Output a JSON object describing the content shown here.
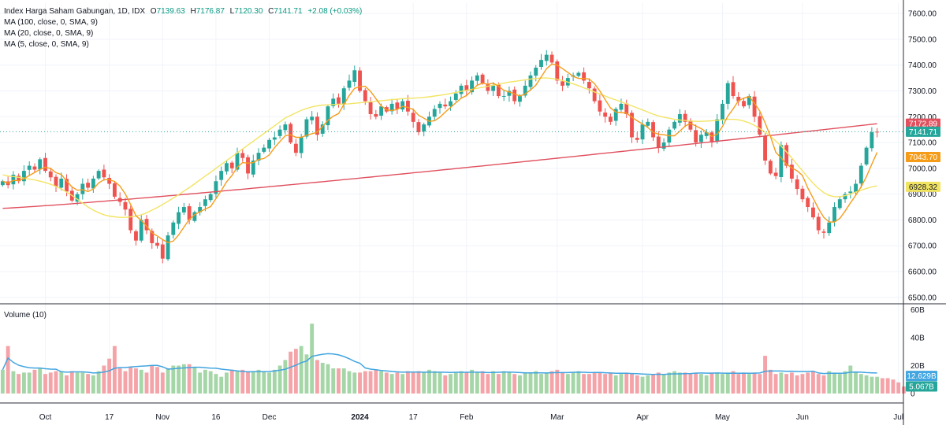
{
  "legend": {
    "title": "Index Harga Saham Gabungan, 1D, IDX",
    "open_label": "O",
    "open": "7139.63",
    "high_label": "H",
    "high": "7176.87",
    "low_label": "L",
    "low": "7120.30",
    "close_label": "C",
    "close": "7141.71",
    "change": "+2.08 (+0.03%)",
    "ma100": "MA (100, close, 0, SMA, 9)",
    "ma20": "MA (20, close, 0, SMA, 9)",
    "ma5": "MA (5, close, 0, SMA, 9)",
    "volume_label": "Volume (10)"
  },
  "colors": {
    "up": "#26a69a",
    "down": "#ef5350",
    "up_vol": "#a5d6a7",
    "down_vol": "#f4a3a8",
    "ma100": "#e0505e",
    "ma20": "#f2e463",
    "ma5": "#f59c1a",
    "vol_ma": "#42a5e0",
    "grid": "#f0f3fa",
    "border": "#2a2e39"
  },
  "chart_data": {
    "type": "candlestick",
    "price_axis": {
      "ticks": [
        "7600.00",
        "7500.00",
        "7400.00",
        "7300.00",
        "7200.00",
        "7100.00",
        "7000.00",
        "6900.00",
        "6800.00",
        "6700.00",
        "6600.00",
        "6500.00"
      ],
      "range": [
        6475,
        7640
      ]
    },
    "volume_axis": {
      "ticks": [
        "60B",
        "40B",
        "20B",
        "0"
      ],
      "range": [
        0,
        62
      ]
    },
    "x_labels": [
      {
        "label": "Oct",
        "index": 8
      },
      {
        "label": "17",
        "index": 20
      },
      {
        "label": "Nov",
        "index": 30
      },
      {
        "label": "16",
        "index": 40
      },
      {
        "label": "Dec",
        "index": 50
      },
      {
        "label": "2024",
        "index": 67,
        "bold": true
      },
      {
        "label": "17",
        "index": 77
      },
      {
        "label": "Feb",
        "index": 87
      },
      {
        "label": "Mar",
        "index": 104
      },
      {
        "label": "Apr",
        "index": 120
      },
      {
        "label": "May",
        "index": 135
      },
      {
        "label": "Jun",
        "index": 150
      },
      {
        "label": "Jul",
        "index": 168
      }
    ],
    "price_tags": [
      {
        "value": 7172.89,
        "text": "7172.89",
        "color": "#e0505e"
      },
      {
        "value": 7141.71,
        "text": "7141.71",
        "color": "#26a69a"
      },
      {
        "value": 7043.7,
        "text": "7043.70",
        "color": "#f59c1a"
      },
      {
        "value": 6928.32,
        "text": "6928.32",
        "color": "#f2e463",
        "dark_text": true
      }
    ],
    "volume_tags": [
      {
        "value": 12.629,
        "text": "12.629B",
        "color": "#42a5e0"
      },
      {
        "value": 5.067,
        "text": "5.067B",
        "color": "#26a69a"
      }
    ],
    "closes": [
      6950,
      6935,
      6975,
      6950,
      6990,
      7010,
      6995,
      7035,
      6990,
      6965,
      6930,
      6960,
      6910,
      6875,
      6900,
      6940,
      6925,
      6960,
      6990,
      6965,
      6940,
      6890,
      6870,
      6840,
      6760,
      6720,
      6800,
      6760,
      6710,
      6700,
      6650,
      6740,
      6790,
      6830,
      6850,
      6800,
      6830,
      6850,
      6880,
      6900,
      6950,
      6990,
      7020,
      7000,
      7060,
      7040,
      6980,
      7030,
      7060,
      7080,
      7110,
      7120,
      7150,
      7170,
      7100,
      7060,
      7120,
      7190,
      7200,
      7130,
      7170,
      7240,
      7270,
      7250,
      7310,
      7340,
      7380,
      7300,
      7260,
      7210,
      7200,
      7240,
      7220,
      7250,
      7230,
      7260,
      7220,
      7180,
      7140,
      7170,
      7200,
      7230,
      7250,
      7240,
      7260,
      7290,
      7320,
      7300,
      7340,
      7360,
      7330,
      7300,
      7320,
      7280,
      7280,
      7300,
      7260,
      7280,
      7320,
      7360,
      7390,
      7420,
      7440,
      7410,
      7340,
      7320,
      7350,
      7360,
      7370,
      7340,
      7310,
      7260,
      7220,
      7200,
      7180,
      7230,
      7250,
      7210,
      7120,
      7110,
      7170,
      7180,
      7120,
      7080,
      7100,
      7150,
      7180,
      7210,
      7180,
      7150,
      7100,
      7130,
      7140,
      7100,
      7190,
      7250,
      7330,
      7280,
      7260,
      7240,
      7280,
      7200,
      7130,
      7030,
      6980,
      6970,
      7090,
      7010,
      6960,
      6920,
      6880,
      6850,
      6810,
      6760,
      6750,
      6790,
      6850,
      6880,
      6900,
      6910,
      6940,
      7010,
      7080,
      7140,
      7140
    ],
    "volumes": [
      17,
      34,
      16,
      14,
      15,
      15,
      17,
      18,
      14,
      15,
      16,
      16,
      13,
      16,
      15,
      15,
      14,
      13,
      16,
      20,
      25,
      34,
      18,
      16,
      19,
      18,
      17,
      15,
      20,
      19,
      15,
      18,
      20,
      20,
      21,
      21,
      19,
      15,
      17,
      16,
      14,
      12,
      15,
      17,
      16,
      17,
      16,
      16,
      17,
      16,
      15,
      17,
      20,
      24,
      30,
      32,
      34,
      28,
      50,
      24,
      22,
      21,
      18,
      18,
      18,
      16,
      15,
      15,
      16,
      16,
      17,
      16,
      15,
      14,
      15,
      14,
      16,
      15,
      16,
      15,
      17,
      16,
      15,
      13,
      14,
      15,
      16,
      15,
      17,
      15,
      16,
      14,
      16,
      14,
      16,
      15,
      14,
      13,
      15,
      15,
      16,
      14,
      15,
      16,
      17,
      15,
      14,
      15,
      16,
      14,
      14,
      15,
      15,
      14,
      15,
      13,
      14,
      15,
      14,
      13,
      12,
      13,
      14,
      15,
      14,
      15,
      16,
      15,
      15,
      14,
      15,
      14,
      13,
      15,
      15,
      14,
      15,
      16,
      14,
      15,
      14,
      15,
      14,
      27,
      17,
      14,
      15,
      14,
      15,
      13,
      14,
      15,
      16,
      14,
      13,
      16,
      15,
      14,
      16,
      20,
      15,
      14,
      13,
      12,
      12,
      11,
      11,
      10,
      8,
      5
    ],
    "ma20": [
      6975,
      6970,
      6968,
      6965,
      6962,
      6958,
      6955,
      6950,
      6945,
      6938,
      6930,
      6920,
      6908,
      6895,
      6880,
      6865,
      6850,
      6838,
      6828,
      6820,
      6815,
      6812,
      6810,
      6810,
      6812,
      6815,
      6820,
      6828,
      6838,
      6848,
      6860,
      6872,
      6885,
      6898,
      6912,
      6925,
      6940,
      6955,
      6970,
      6985,
      7000,
      7015,
      7030,
      7045,
      7060,
      7075,
      7090,
      7105,
      7120,
      7135,
      7150,
      7165,
      7180,
      7195,
      7205,
      7215,
      7225,
      7232,
      7238,
      7242,
      7245,
      7246,
      7247,
      7248,
      7249,
      7250,
      7252,
      7254,
      7256,
      7258,
      7260,
      7262,
      7264,
      7266,
      7268,
      7270,
      7271,
      7272,
      7273,
      7275,
      7277,
      7280,
      7283,
      7286,
      7290,
      7294,
      7298,
      7302,
      7306,
      7310,
      7314,
      7318,
      7322,
      7326,
      7330,
      7334,
      7337,
      7340,
      7343,
      7346,
      7348,
      7350,
      7350,
      7348,
      7345,
      7340,
      7334,
      7327,
      7320,
      7312,
      7304,
      7296,
      7288,
      7280,
      7272,
      7265,
      7258,
      7250,
      7242,
      7234,
      7226,
      7218,
      7210,
      7203,
      7198,
      7194,
      7190,
      7187,
      7185,
      7183,
      7182,
      7182,
      7183,
      7184,
      7186,
      7188,
      7190,
      7190,
      7188,
      7183,
      7176,
      7166,
      7154,
      7140,
      7124,
      7106,
      7086,
      7064,
      7040,
      7015,
      6990,
      6965,
      6942,
      6922,
      6906,
      6895,
      6890,
      6890,
      6894,
      6900,
      6908,
      6915,
      6922,
      6928,
      6932
    ]
  }
}
